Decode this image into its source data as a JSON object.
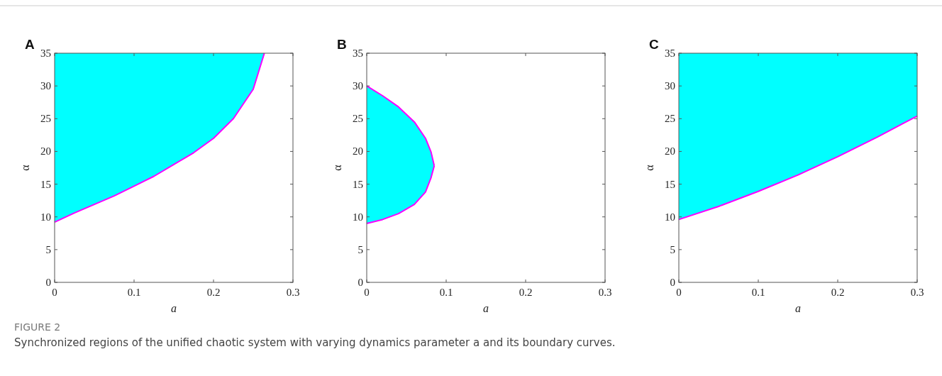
{
  "chart_data": [
    {
      "type": "line",
      "title": "A",
      "xlabel": "a",
      "ylabel": "α",
      "xlim": [
        0,
        0.3
      ],
      "ylim": [
        0,
        35
      ],
      "xticks": [
        0,
        0.1,
        0.2,
        0.3
      ],
      "yticks": [
        0,
        5,
        10,
        15,
        20,
        25,
        30,
        35
      ],
      "annotations": [
        "FIGURE 2",
        "Synchronized regions of the unified chaotic system with varying dynamics parameter a and its boundary curves."
      ],
      "series": [
        {
          "color": "#ff00ff",
          "x": [
            0,
            0.025,
            0.05,
            0.075,
            0.1,
            0.125,
            0.15,
            0.175,
            0.2,
            0.225,
            0.25,
            0.264
          ],
          "values": [
            9.2,
            10.6,
            11.9,
            13.2,
            14.7,
            16.2,
            18.0,
            19.8,
            22.0,
            25.0,
            29.5,
            35
          ],
          "lower": [
            9.2,
            10.6,
            11.9,
            13.2,
            14.7,
            16.2,
            18.0,
            19.8,
            22.0,
            25.0,
            29.5,
            35
          ],
          "upper": [
            35,
            35,
            35,
            35,
            35,
            35,
            35,
            35,
            35,
            35,
            35,
            35
          ]
        }
      ]
    },
    {
      "type": "line",
      "title": "B",
      "xlabel": "a",
      "ylabel": "α",
      "xlim": [
        0,
        0.3
      ],
      "ylim": [
        0,
        35
      ],
      "xticks": [
        0,
        0.1,
        0.2,
        0.3
      ],
      "yticks": [
        0,
        5,
        10,
        15,
        20,
        25,
        30,
        35
      ],
      "series": [
        {
          "color": "#ff00ff",
          "x": [
            0,
            0.02,
            0.04,
            0.06,
            0.074,
            0.081,
            0.085
          ],
          "values": [
            30,
            28.5,
            26.8,
            24.5,
            22.0,
            19.9,
            17.8
          ],
          "lower": [
            9.0,
            9.6,
            10.5,
            11.9,
            13.8,
            16.0,
            17.8
          ],
          "upper": [
            30,
            28.5,
            26.8,
            24.5,
            22.0,
            19.9,
            17.8
          ]
        },
        {
          "color": "#ff00ff",
          "x": [
            0,
            0.02,
            0.04,
            0.06,
            0.074,
            0.081,
            0.085
          ],
          "values": [
            9.0,
            9.6,
            10.5,
            11.9,
            13.8,
            16.0,
            17.8
          ]
        }
      ]
    },
    {
      "type": "line",
      "title": "C",
      "xlabel": "a",
      "ylabel": "α",
      "xlim": [
        0,
        0.3
      ],
      "ylim": [
        0,
        35
      ],
      "xticks": [
        0,
        0.1,
        0.2,
        0.3
      ],
      "yticks": [
        0,
        5,
        10,
        15,
        20,
        25,
        30,
        35
      ],
      "series": [
        {
          "color": "#ff00ff",
          "x": [
            0,
            0.05,
            0.1,
            0.15,
            0.2,
            0.25,
            0.3
          ],
          "values": [
            9.6,
            11.6,
            13.9,
            16.4,
            19.2,
            22.2,
            25.4
          ],
          "lower": [
            9.6,
            11.6,
            13.9,
            16.4,
            19.2,
            22.2,
            25.4
          ],
          "upper": [
            35,
            35,
            35,
            35,
            35,
            35,
            35
          ]
        }
      ]
    }
  ]
}
